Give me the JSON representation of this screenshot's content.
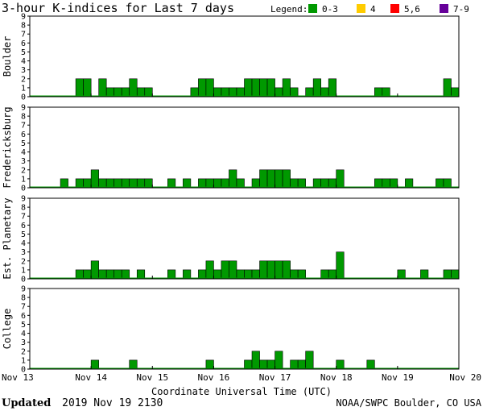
{
  "header": {
    "title": "3-hour K-indices for Last 7 days",
    "legend_label": "Legend:",
    "legend": [
      {
        "label": "0-3",
        "color": "#009900"
      },
      {
        "label": "4",
        "color": "#ffcc00"
      },
      {
        "label": "5,6",
        "color": "#ff0000"
      },
      {
        "label": "7-9",
        "color": "#660099"
      }
    ]
  },
  "footer": {
    "updated_label": "Updated",
    "updated_value": "2019 Nov 19 2130",
    "source": "NOAA/SWPC Boulder, CO USA"
  },
  "chart_data": {
    "type": "bar",
    "xlabel": "Coordinate Universal Time (UTC)",
    "x_ticks": [
      "Nov 13",
      "Nov 14",
      "Nov 15",
      "Nov 16",
      "Nov 17",
      "Nov 18",
      "Nov 19",
      "Nov 20"
    ],
    "x_range": [
      "2019-11-13 00:00",
      "2019-11-20 00:00"
    ],
    "interval_hours": 3,
    "ylim": [
      0,
      9
    ],
    "y_ticks": [
      0,
      1,
      2,
      3,
      4,
      5,
      6,
      7,
      8,
      9
    ],
    "bar_color": "#009900",
    "panels": [
      {
        "ylabel": "Boulder",
        "values": [
          0,
          0,
          0,
          0,
          0,
          0,
          2,
          2,
          0,
          2,
          1,
          1,
          1,
          2,
          1,
          1,
          0,
          0,
          0,
          0,
          0,
          1,
          2,
          2,
          1,
          1,
          1,
          1,
          2,
          2,
          2,
          2,
          1,
          2,
          1,
          0,
          1,
          2,
          1,
          2,
          0,
          0,
          0,
          0,
          0,
          1,
          1,
          0,
          0,
          0,
          0,
          0,
          0,
          0,
          2,
          1
        ]
      },
      {
        "ylabel": "Fredericksburg",
        "values": [
          0,
          0,
          0,
          0,
          1,
          0,
          1,
          1,
          2,
          1,
          1,
          1,
          1,
          1,
          1,
          1,
          0,
          0,
          1,
          0,
          1,
          0,
          1,
          1,
          1,
          1,
          2,
          1,
          0,
          1,
          2,
          2,
          2,
          2,
          1,
          1,
          0,
          1,
          1,
          1,
          2,
          0,
          0,
          0,
          0,
          1,
          1,
          1,
          0,
          1,
          0,
          0,
          0,
          1,
          1,
          0
        ]
      },
      {
        "ylabel": "Est. Planetary",
        "values": [
          0,
          0,
          0,
          0,
          0,
          0,
          1,
          1,
          2,
          1,
          1,
          1,
          1,
          0,
          1,
          0,
          0,
          0,
          1,
          0,
          1,
          0,
          1,
          2,
          1,
          2,
          2,
          1,
          1,
          1,
          2,
          2,
          2,
          2,
          1,
          1,
          0,
          0,
          1,
          1,
          3,
          0,
          0,
          0,
          0,
          0,
          0,
          0,
          1,
          0,
          0,
          1,
          0,
          0,
          1,
          1
        ]
      },
      {
        "ylabel": "College",
        "values": [
          0,
          0,
          0,
          0,
          0,
          0,
          0,
          0,
          1,
          0,
          0,
          0,
          0,
          1,
          0,
          0,
          0,
          0,
          0,
          0,
          0,
          0,
          0,
          1,
          0,
          0,
          0,
          0,
          1,
          2,
          1,
          1,
          2,
          0,
          1,
          1,
          2,
          0,
          0,
          0,
          1,
          0,
          0,
          0,
          1,
          0,
          0,
          0,
          0,
          0,
          0,
          0,
          0,
          0,
          0,
          0
        ]
      }
    ]
  }
}
